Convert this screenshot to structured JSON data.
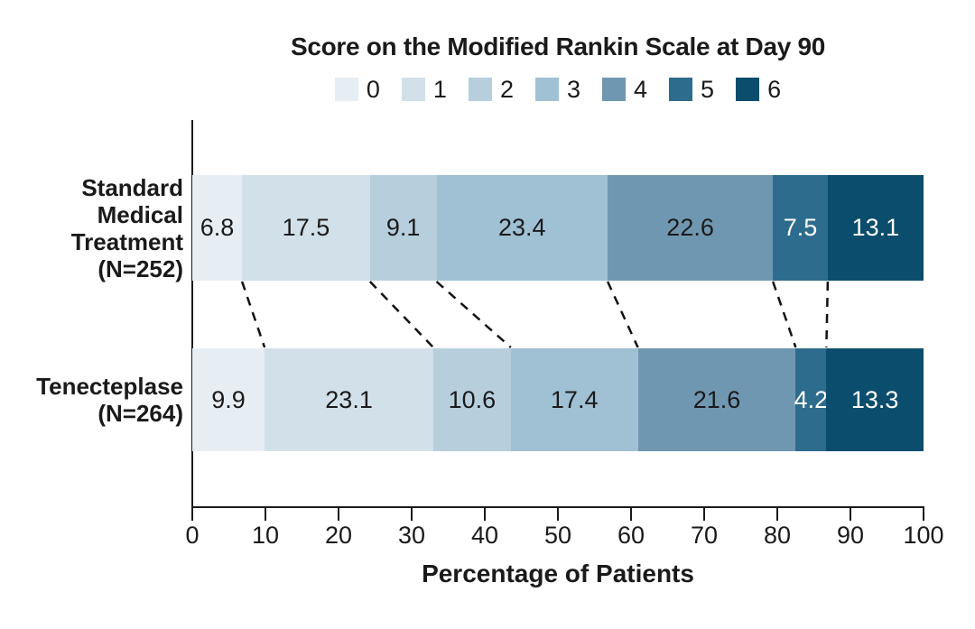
{
  "chart_data": {
    "type": "bar",
    "orientation": "horizontal",
    "stacked": true,
    "title": "Score on the Modified Rankin Scale at Day 90",
    "xlabel": "Percentage of Patients",
    "xlim": [
      0,
      100
    ],
    "x_ticks": [
      0,
      10,
      20,
      30,
      40,
      50,
      60,
      70,
      80,
      90,
      100
    ],
    "grid": false,
    "legend_position": "top-center",
    "legend_entries": [
      {
        "label": "0",
        "color": "#E7EEF3"
      },
      {
        "label": "1",
        "color": "#D2E0E9"
      },
      {
        "label": "2",
        "color": "#B7CEDD"
      },
      {
        "label": "3",
        "color": "#A0C0D4"
      },
      {
        "label": "4",
        "color": "#7097B1"
      },
      {
        "label": "5",
        "color": "#2D6C8D"
      },
      {
        "label": "6",
        "color": "#0B4D6D"
      }
    ],
    "value_label_colors": [
      "#1a1a1a",
      "#1a1a1a",
      "#1a1a1a",
      "#1a1a1a",
      "#1a1a1a",
      "#ffffff",
      "#ffffff"
    ],
    "categories": [
      {
        "name": "Standard Medical Treatment (N=252)",
        "label_lines": [
          "Standard",
          "Medical",
          "Treatment",
          "(N=252)"
        ]
      },
      {
        "name": "Tenecteplase (N=264)",
        "label_lines": [
          "Tenecteplase",
          "(N=264)"
        ]
      }
    ],
    "series": [
      {
        "name": "0",
        "values": [
          6.8,
          9.9
        ]
      },
      {
        "name": "1",
        "values": [
          17.5,
          23.1
        ]
      },
      {
        "name": "2",
        "values": [
          9.1,
          10.6
        ]
      },
      {
        "name": "3",
        "values": [
          23.4,
          17.4
        ]
      },
      {
        "name": "4",
        "values": [
          22.6,
          21.6
        ]
      },
      {
        "name": "5",
        "values": [
          7.5,
          4.2
        ]
      },
      {
        "name": "6",
        "values": [
          13.1,
          13.3
        ]
      }
    ],
    "connector_style": "dashed lines joining cumulative segment boundaries of the two bars"
  }
}
